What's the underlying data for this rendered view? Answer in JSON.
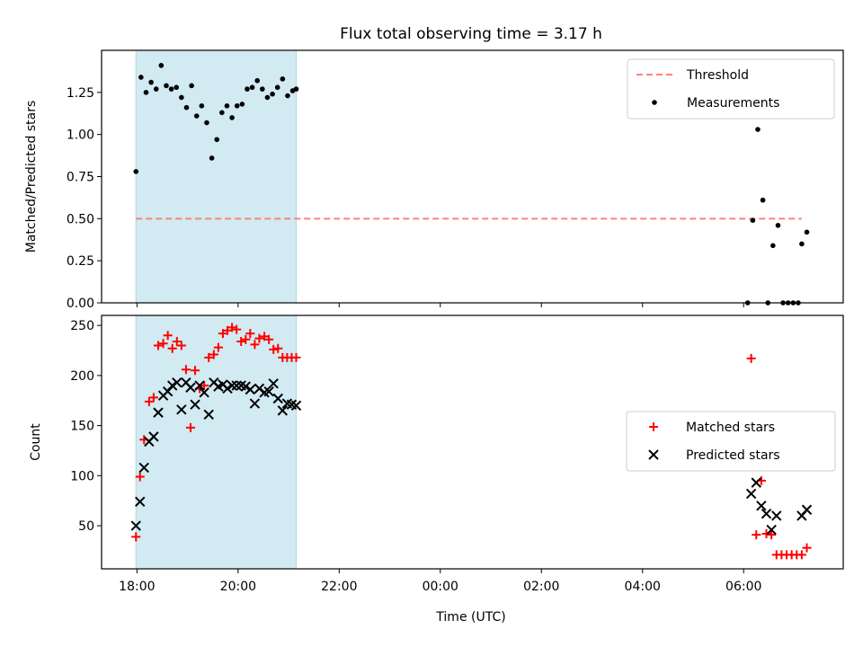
{
  "figure": {
    "title": "Flux total observing time = 3.17 h",
    "xlabel": "Time (UTC)"
  },
  "chart_data": [
    {
      "type": "scatter",
      "name": "ratio-panel",
      "title": "Flux total observing time = 3.17 h",
      "xlabel": "",
      "ylabel": "Matched/Predicted stars",
      "xlim_hours": [
        17.3,
        31.97
      ],
      "ylim": [
        0,
        1.5
      ],
      "yticks": [
        0.0,
        0.25,
        0.5,
        0.75,
        1.0,
        1.25
      ],
      "ytick_labels": [
        "0.00",
        "0.25",
        "0.50",
        "0.75",
        "1.00",
        "1.25"
      ],
      "x_tick_labels": [
        "18:00",
        "20:00",
        "22:00",
        "00:00",
        "02:00",
        "04:00",
        "06:00"
      ],
      "shaded_interval_hours": [
        17.98,
        21.15
      ],
      "shade_color": "#add8e6",
      "legend": {
        "location": "upper right",
        "entries": [
          "Threshold",
          "Measurements"
        ]
      },
      "series": [
        {
          "name": "Threshold",
          "style": "dashed-line",
          "color": "#ff8080",
          "x": [
            17.98,
            31.15
          ],
          "y": [
            0.5,
            0.5
          ]
        },
        {
          "name": "Measurements",
          "style": "dots",
          "color": "#000000",
          "x": [
            17.98,
            18.08,
            18.18,
            18.28,
            18.38,
            18.48,
            18.58,
            18.68,
            18.78,
            18.88,
            18.98,
            19.08,
            19.18,
            19.28,
            19.38,
            19.48,
            19.58,
            19.68,
            19.78,
            19.88,
            19.98,
            20.08,
            20.18,
            20.28,
            20.38,
            20.48,
            20.58,
            20.68,
            20.78,
            20.88,
            20.98,
            21.08,
            21.15,
            30.08,
            30.18,
            30.28,
            30.38,
            30.48,
            30.58,
            30.68,
            30.78,
            30.88,
            30.98,
            31.08,
            31.15,
            31.25
          ],
          "y": [
            0.78,
            1.34,
            1.25,
            1.31,
            1.27,
            1.41,
            1.29,
            1.27,
            1.28,
            1.22,
            1.16,
            1.29,
            1.11,
            1.17,
            1.07,
            0.86,
            0.97,
            1.13,
            1.17,
            1.1,
            1.17,
            1.18,
            1.27,
            1.28,
            1.32,
            1.27,
            1.22,
            1.24,
            1.28,
            1.33,
            1.23,
            1.26,
            1.27,
            0.0,
            0.49,
            1.03,
            0.61,
            0.0,
            0.34,
            0.46,
            0.0,
            0.0,
            0.0,
            0.0,
            0.35,
            0.42
          ]
        }
      ]
    },
    {
      "type": "scatter",
      "name": "count-panel",
      "title": "",
      "xlabel": "Time (UTC)",
      "ylabel": "Count",
      "xlim_hours": [
        17.3,
        31.97
      ],
      "ylim": [
        7,
        260
      ],
      "yticks": [
        50,
        100,
        150,
        200,
        250
      ],
      "ytick_labels": [
        "50",
        "100",
        "150",
        "200",
        "250"
      ],
      "x_tick_labels": [
        "18:00",
        "20:00",
        "22:00",
        "00:00",
        "02:00",
        "04:00",
        "06:00"
      ],
      "shaded_interval_hours": [
        17.98,
        21.15
      ],
      "shade_color": "#add8e6",
      "legend": {
        "location": "center right",
        "entries": [
          "Matched stars",
          "Predicted stars"
        ]
      },
      "series": [
        {
          "name": "Matched stars",
          "marker": "plus",
          "color": "#ff0000",
          "x": [
            17.98,
            18.06,
            18.14,
            18.24,
            18.33,
            18.42,
            18.52,
            18.61,
            18.7,
            18.79,
            18.88,
            18.97,
            19.06,
            19.15,
            19.24,
            19.33,
            19.42,
            19.52,
            19.61,
            19.7,
            19.79,
            19.88,
            19.97,
            20.06,
            20.15,
            20.24,
            20.33,
            20.42,
            20.52,
            20.61,
            20.7,
            20.79,
            20.88,
            20.97,
            21.06,
            21.15,
            30.15,
            30.25,
            30.35,
            30.45,
            30.55,
            30.65,
            30.75,
            30.85,
            30.95,
            31.05,
            31.15,
            31.25
          ],
          "y": [
            39,
            99,
            136,
            174,
            178,
            230,
            232,
            240,
            227,
            234,
            230,
            206,
            148,
            205,
            187,
            190,
            218,
            221,
            228,
            242,
            245,
            248,
            246,
            234,
            236,
            242,
            231,
            237,
            239,
            236,
            226,
            227,
            218,
            218,
            218,
            218,
            217,
            41,
            95,
            42,
            41,
            21,
            21,
            21,
            21,
            21,
            21,
            28
          ],
          "x_fix": [
            17.98,
            18.06,
            18.14,
            18.24,
            18.33,
            18.42,
            18.52,
            18.61,
            18.7,
            18.79,
            18.88,
            18.97,
            19.06,
            19.15,
            19.24,
            19.33,
            19.42,
            19.52,
            19.61,
            19.7,
            19.79,
            19.88,
            19.97,
            20.06,
            20.15,
            20.24,
            20.33,
            20.42,
            20.52,
            20.61,
            20.7,
            20.79,
            20.88,
            20.97,
            21.06,
            21.15
          ]
        },
        {
          "name": "Predicted stars",
          "marker": "x",
          "color": "#000000",
          "x": [
            17.98,
            18.06,
            18.14,
            18.24,
            18.33,
            18.42,
            18.52,
            18.61,
            18.7,
            18.79,
            18.88,
            18.97,
            19.06,
            19.15,
            19.24,
            19.33,
            19.42,
            19.52,
            19.61,
            19.7,
            19.79,
            19.88,
            19.97,
            20.06,
            20.15,
            20.24,
            20.33,
            20.42,
            20.52,
            20.61,
            20.7,
            20.79,
            20.88,
            20.97,
            21.06,
            21.15,
            30.15,
            30.25,
            30.35,
            30.45,
            30.55,
            30.65,
            31.15,
            31.25
          ],
          "y": [
            50,
            74,
            108,
            134,
            139,
            163,
            180,
            184,
            190,
            193,
            166,
            193,
            188,
            171,
            190,
            183,
            161,
            193,
            189,
            191,
            187,
            190,
            190,
            190,
            189,
            186,
            172,
            187,
            183,
            184,
            192,
            177,
            165,
            172,
            171,
            170,
            82,
            93,
            70,
            62,
            46,
            60,
            60,
            66
          ]
        }
      ]
    }
  ]
}
